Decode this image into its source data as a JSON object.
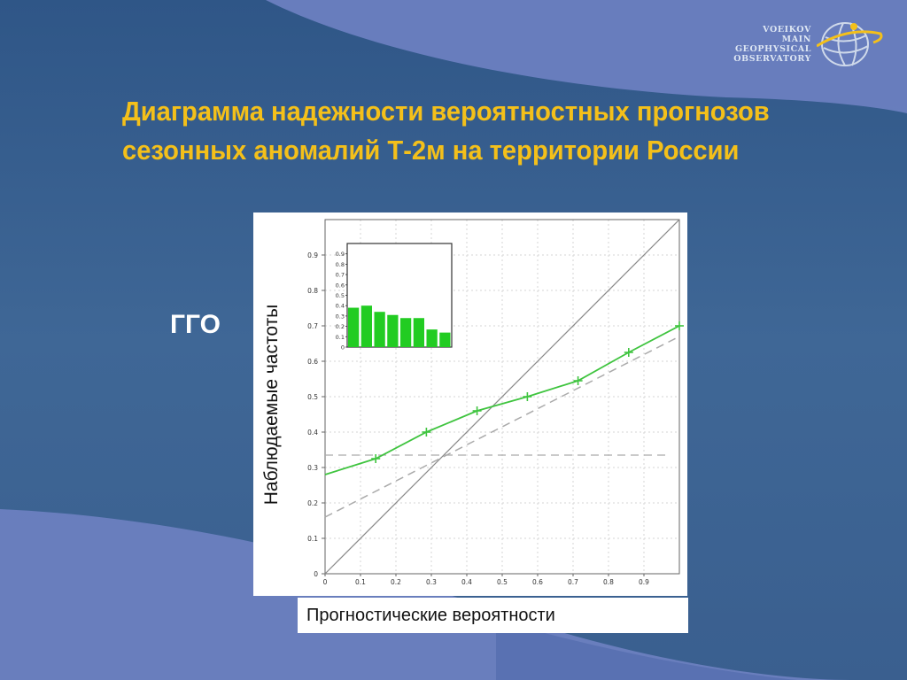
{
  "logo": {
    "lines": [
      "VOEIKOV",
      "MAIN",
      "GEOPHYSICAL",
      "OBSERVATORY"
    ]
  },
  "slide": {
    "title_line1": "Диаграмма надежности вероятностных прогнозов",
    "title_line2": "сезонных аномалий Т-2м на территории России",
    "side_label": "ГГО",
    "ylabel": "Наблюдаемые частоты",
    "xlabel": "Прогностические вероятности"
  },
  "colors": {
    "title": "#f4c01a",
    "series": "#3fc43f",
    "bars": "#22cc22",
    "diagonal": "#888888",
    "dashed": "#aaaaaa"
  },
  "chart_data": [
    {
      "type": "line",
      "xlim": [
        0,
        1
      ],
      "ylim": [
        0,
        1
      ],
      "xticks": [
        "0",
        "0.1",
        "0.2",
        "0.3",
        "0.4",
        "0.5",
        "0.6",
        "0.7",
        "0.8",
        "0.9"
      ],
      "yticks": [
        "0",
        "0.1",
        "0.2",
        "0.3",
        "0.4",
        "0.5",
        "0.6",
        "0.7",
        "0.8",
        "0.9"
      ],
      "grid": true,
      "series": [
        {
          "x": [
            0,
            0.143,
            0.286,
            0.429,
            0.571,
            0.714,
            0.857,
            1.0
          ],
          "y": [
            0.28,
            0.325,
            0.4,
            0.46,
            0.5,
            0.545,
            0.625,
            0.7
          ],
          "markers": [
            false,
            true,
            true,
            true,
            true,
            true,
            true,
            true
          ]
        }
      ],
      "reference_lines": [
        {
          "style": "diagonal",
          "x": [
            0,
            1
          ],
          "y": [
            0,
            1
          ]
        },
        {
          "style": "dashed",
          "x": [
            0,
            1
          ],
          "y": [
            0.16,
            0.67
          ]
        },
        {
          "style": "dashed-horizontal",
          "y": 0.335
        }
      ]
    },
    {
      "type": "bar",
      "inset": true,
      "ylim": [
        0,
        1
      ],
      "yticks": [
        "0",
        "0.1",
        "0.2",
        "0.3",
        "0.4",
        "0.5",
        "0.6",
        "0.7",
        "0.8",
        "0.9"
      ],
      "values": [
        0.38,
        0.4,
        0.34,
        0.31,
        0.28,
        0.28,
        0.17,
        0.14
      ]
    }
  ]
}
